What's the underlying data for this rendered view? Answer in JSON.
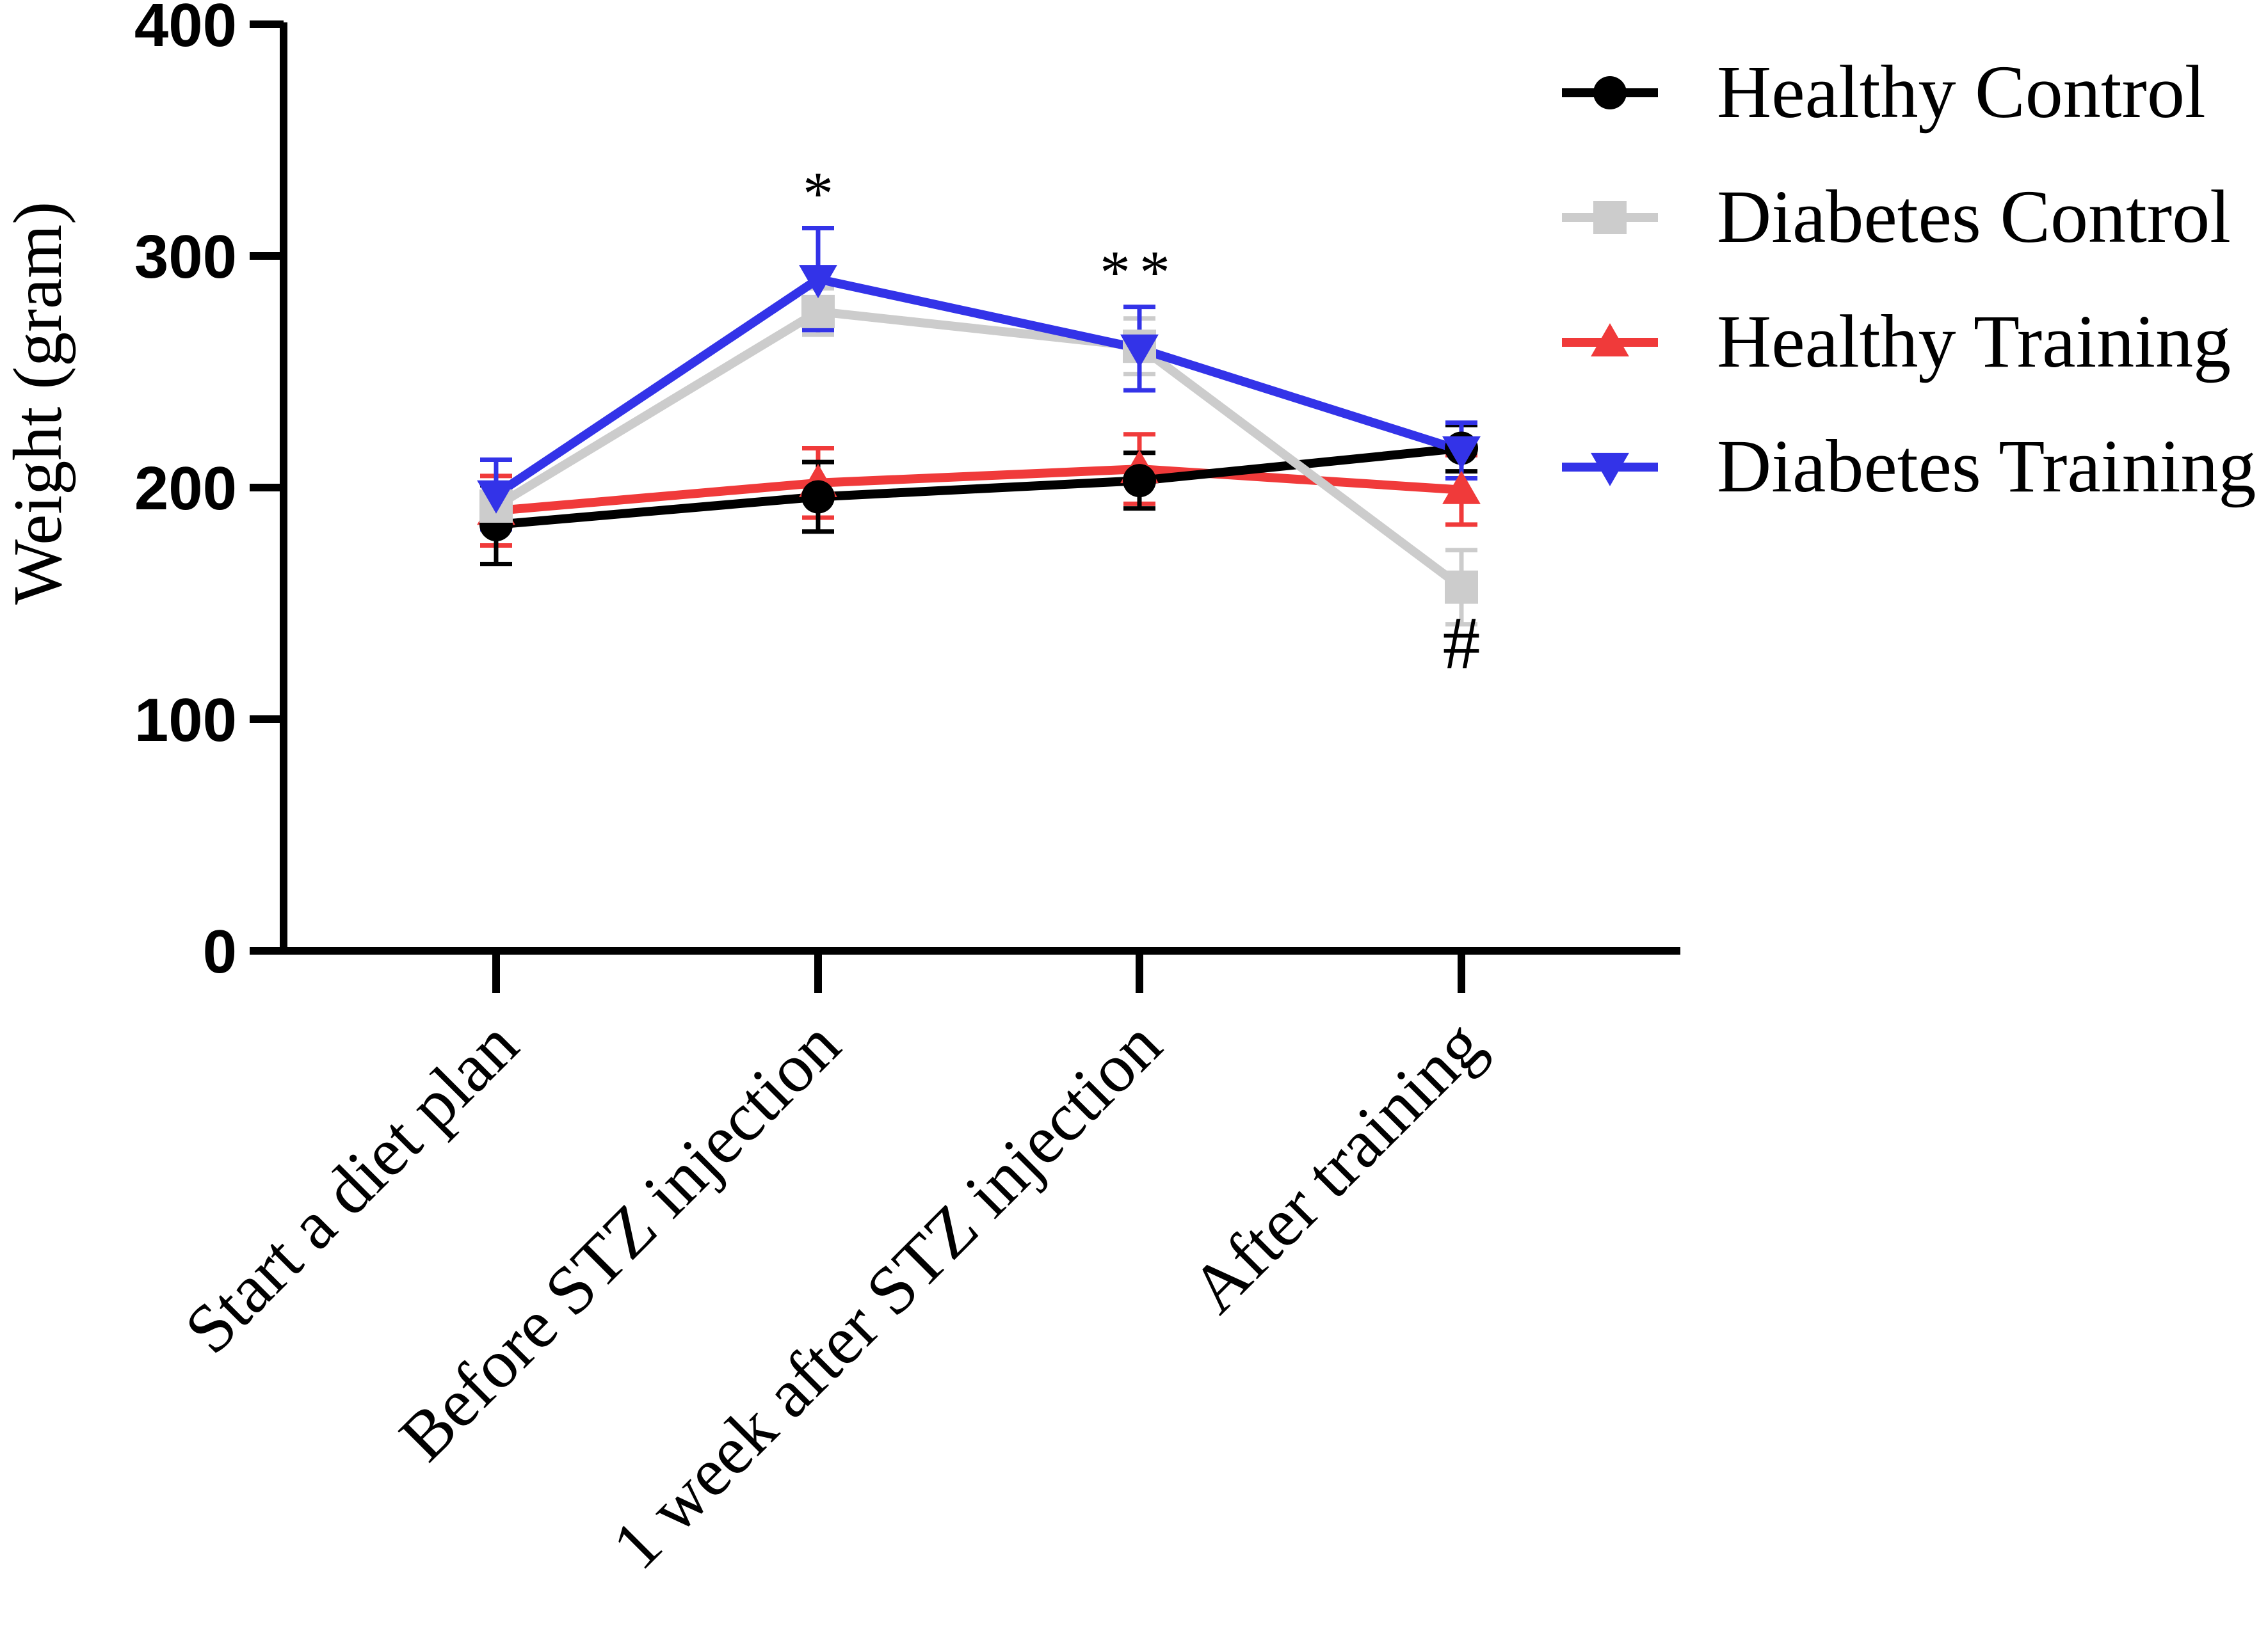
{
  "chart_data": {
    "type": "line",
    "title": "",
    "xlabel": "",
    "ylabel": "Weight (gram)",
    "ylim": [
      0,
      400
    ],
    "yticks": [
      0,
      100,
      200,
      300,
      400
    ],
    "categories": [
      "Start a diet plan",
      "Before STZ injection",
      "1 week after STZ injection",
      "After training"
    ],
    "legend_position": "top-right",
    "series": [
      {
        "name": "Healthy Control",
        "color": "#000000",
        "marker": "circle",
        "values": [
          184,
          196,
          203,
          217
        ],
        "errors": [
          17,
          15,
          12,
          10
        ]
      },
      {
        "name": "Diabetes Control",
        "color": "#cccccc",
        "marker": "square",
        "values": [
          192,
          276,
          261,
          157
        ],
        "errors": [
          10,
          10,
          12,
          16
        ]
      },
      {
        "name": "Healthy Training",
        "color": "#f03a3a",
        "marker": "triangle-up",
        "values": [
          190,
          202,
          208,
          199
        ],
        "errors": [
          15,
          15,
          15,
          15
        ]
      },
      {
        "name": "Diabetes Training",
        "color": "#3333e8",
        "marker": "triangle-down",
        "values": [
          197,
          290,
          260,
          216
        ],
        "errors": [
          15,
          22,
          18,
          12
        ]
      }
    ],
    "annotations": [
      {
        "text": "*",
        "category_index": 1,
        "y": 318
      },
      {
        "text": "**",
        "category_index": 2,
        "y": 284
      },
      {
        "text": "#",
        "category_index": 3,
        "y": 122
      }
    ]
  }
}
